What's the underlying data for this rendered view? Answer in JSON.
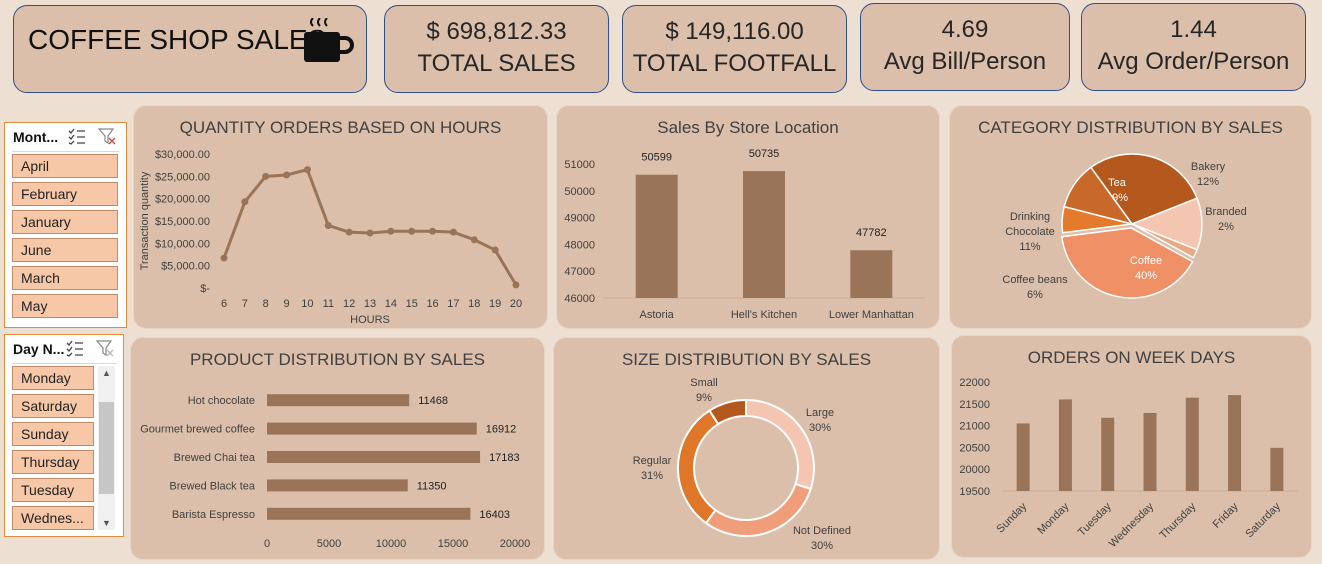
{
  "header": {
    "title": "COFFEE SHOP SALES",
    "kpis": [
      {
        "value": "$  698,812.33",
        "label": "TOTAL SALES"
      },
      {
        "value": "$  149,116.00",
        "label": "TOTAL FOOTFALL"
      },
      {
        "value": "4.69",
        "label": "Avg Bill/Person"
      },
      {
        "value": "1.44",
        "label": "Avg Order/Person"
      }
    ]
  },
  "slicers": {
    "month": {
      "title": "Mont...",
      "items": [
        "April",
        "February",
        "January",
        "June",
        "March",
        "May"
      ]
    },
    "day": {
      "title": "Day N...",
      "items": [
        "Monday",
        "Saturday",
        "Sunday",
        "Thursday",
        "Tuesday",
        "Wednes..."
      ]
    }
  },
  "chart_data": [
    {
      "type": "line",
      "title": "QUANTITY ORDERS BASED ON HOURS",
      "xlabel": "HOURS",
      "ylabel": "Transaction quantity",
      "x": [
        6,
        7,
        8,
        9,
        10,
        11,
        12,
        13,
        14,
        15,
        16,
        17,
        18,
        19,
        20
      ],
      "values": [
        6700,
        19300,
        25000,
        25300,
        26500,
        14000,
        12500,
        12300,
        12700,
        12700,
        12700,
        12500,
        10800,
        8500,
        700
      ],
      "yticks": [
        "$-",
        "$5,000.00",
        "$10,000.00",
        "$15,000.00",
        "$20,000.00",
        "$25,000.00",
        "$30,000.00"
      ],
      "ylim": [
        0,
        30000
      ]
    },
    {
      "type": "bar",
      "title": "Sales By Store Location",
      "categories": [
        "Astoria",
        "Hell's Kitchen",
        "Lower Manhattan"
      ],
      "values": [
        50599,
        50735,
        47782
      ],
      "yticks": [
        "46000",
        "47000",
        "48000",
        "49000",
        "50000",
        "51000"
      ],
      "ylim": [
        46000,
        51000
      ]
    },
    {
      "type": "pie",
      "title": "CATEGORY DISTRIBUTION BY SALES",
      "slices": [
        {
          "label": "Tea",
          "value": 29,
          "pct": "29%",
          "color": "#b4581e"
        },
        {
          "label": "Bakery",
          "value": 12,
          "pct": "12%",
          "color": "#f4c6b2"
        },
        {
          "label": "Branded",
          "value": 2,
          "pct": "2%",
          "color": "#e9a884"
        },
        {
          "label": "Coffee",
          "value": 40,
          "pct": "40%",
          "color": "#ef9066"
        },
        {
          "label": "Coffee beans",
          "value": 6,
          "pct": "6%",
          "color": "#e37a2c"
        },
        {
          "label": "Drinking Chocolate",
          "value": 11,
          "pct": "11%",
          "color": "#c8692a"
        }
      ]
    },
    {
      "type": "bar",
      "orientation": "horizontal",
      "title": "PRODUCT DISTRIBUTION BY SALES",
      "categories": [
        "Hot chocolate",
        "Gourmet brewed coffee",
        "Brewed Chai tea",
        "Brewed Black tea",
        "Barista Espresso"
      ],
      "values": [
        11468,
        16912,
        17183,
        11350,
        16403
      ],
      "xticks": [
        "0",
        "5000",
        "10000",
        "15000",
        "20000"
      ],
      "xlim": [
        0,
        20000
      ]
    },
    {
      "type": "pie",
      "subtype": "doughnut",
      "title": "SIZE DISTRIBUTION BY SALES",
      "slices": [
        {
          "label": "Large",
          "value": 30,
          "pct": "30%",
          "color": "#f4c6b2"
        },
        {
          "label": "Not Defined",
          "value": 30,
          "pct": "30%",
          "color": "#ef9e79"
        },
        {
          "label": "Regular",
          "value": 31,
          "pct": "31%",
          "color": "#df7628"
        },
        {
          "label": "Small",
          "value": 9,
          "pct": "9%",
          "color": "#b4581e"
        }
      ]
    },
    {
      "type": "bar",
      "title": "ORDERS ON WEEK DAYS",
      "categories": [
        "Sunday",
        "Monday",
        "Tuesday",
        "Wednesday",
        "Thursday",
        "Friday",
        "Saturday"
      ],
      "values": [
        21050,
        21600,
        21180,
        21290,
        21640,
        21700,
        20490
      ],
      "yticks": [
        "19500",
        "20000",
        "20500",
        "21000",
        "21500",
        "22000"
      ],
      "ylim": [
        19500,
        22000
      ]
    }
  ]
}
